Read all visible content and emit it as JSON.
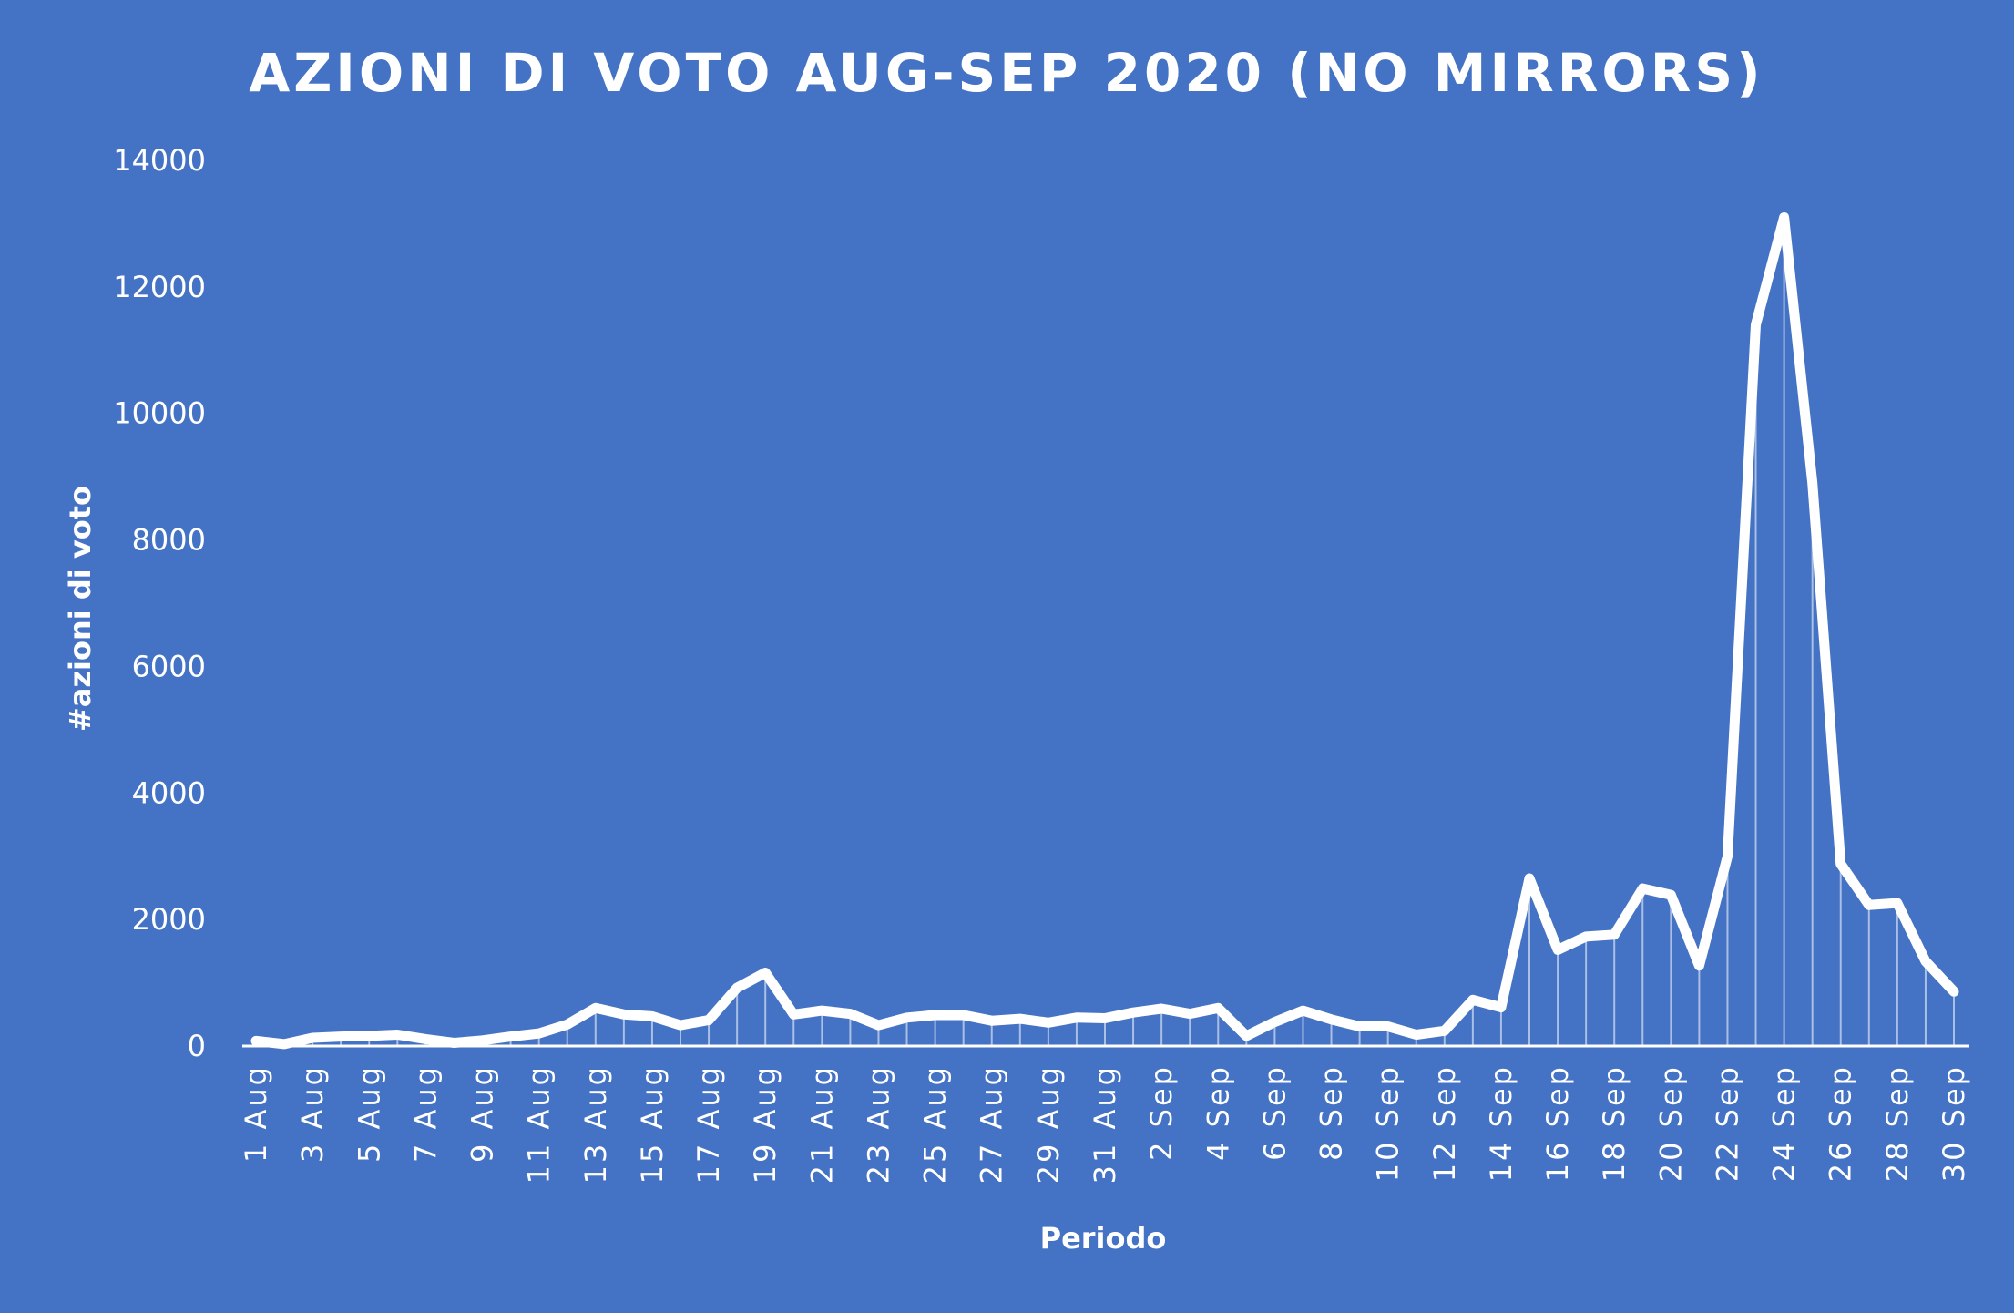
{
  "chart_data": {
    "type": "line",
    "title": "AZIONI DI VOTO AUG-SEP 2020 (NO MIRRORS)",
    "xlabel": "Periodo",
    "ylabel": "#azioni di voto",
    "ylim": [
      0,
      14000
    ],
    "yticks": [
      0,
      2000,
      4000,
      6000,
      8000,
      10000,
      12000,
      14000
    ],
    "grid": false,
    "legend": "none",
    "line_color": "#ffffff",
    "background_color": "#4472c4",
    "x": [
      "1 Aug",
      "2 Aug",
      "3 Aug",
      "4 Aug",
      "5 Aug",
      "6 Aug",
      "7 Aug",
      "8 Aug",
      "9 Aug",
      "10 Aug",
      "11 Aug",
      "12 Aug",
      "13 Aug",
      "14 Aug",
      "15 Aug",
      "16 Aug",
      "17 Aug",
      "18 Aug",
      "19 Aug",
      "20 Aug",
      "21 Aug",
      "22 Aug",
      "23 Aug",
      "24 Aug",
      "25 Aug",
      "26 Aug",
      "27 Aug",
      "28 Aug",
      "29 Aug",
      "30 Aug",
      "31 Aug",
      "1 Sep",
      "2 Sep",
      "3 Sep",
      "4 Sep",
      "5 Sep",
      "6 Sep",
      "7 Sep",
      "8 Sep",
      "9 Sep",
      "10 Sep",
      "11 Sep",
      "12 Sep",
      "13 Sep",
      "14 Sep",
      "15 Sep",
      "16 Sep",
      "17 Sep",
      "18 Sep",
      "19 Sep",
      "20 Sep",
      "21 Sep",
      "22 Sep",
      "23 Sep",
      "24 Sep",
      "25 Sep",
      "26 Sep",
      "27 Sep",
      "28 Sep",
      "29 Sep",
      "30 Sep"
    ],
    "xticks": [
      "1 Aug",
      "3 Aug",
      "5 Aug",
      "7 Aug",
      "9 Aug",
      "11 Aug",
      "13 Aug",
      "15 Aug",
      "17 Aug",
      "19 Aug",
      "21 Aug",
      "23 Aug",
      "25 Aug",
      "27 Aug",
      "29 Aug",
      "31 Aug",
      "2 Sep",
      "4 Sep",
      "6 Sep",
      "8 Sep",
      "10 Sep",
      "12 Sep",
      "14 Sep",
      "16 Sep",
      "18 Sep",
      "20 Sep",
      "22 Sep",
      "24 Sep",
      "26 Sep",
      "28 Sep",
      "30 Sep"
    ],
    "series": [
      {
        "values": [
          80,
          30,
          130,
          150,
          160,
          180,
          110,
          50,
          90,
          150,
          200,
          340,
          600,
          500,
          470,
          330,
          410,
          920,
          1160,
          500,
          560,
          510,
          330,
          450,
          490,
          490,
          400,
          430,
          370,
          450,
          440,
          530,
          590,
          510,
          600,
          160,
          380,
          560,
          420,
          310,
          310,
          180,
          240,
          730,
          610,
          2650,
          1520,
          1730,
          1760,
          2490,
          2390,
          1270,
          3000,
          11400,
          13100,
          8900,
          2880,
          2230,
          2260,
          1340,
          860
        ]
      }
    ]
  }
}
